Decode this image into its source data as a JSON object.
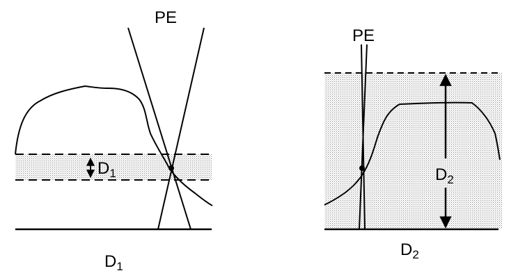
{
  "left_panel": {
    "pe_label": "PE",
    "band_label": "D",
    "band_label_sub": "1",
    "caption": "D",
    "caption_sub": "1"
  },
  "right_panel": {
    "pe_label": "PE",
    "band_label": "D",
    "band_label_sub": "2",
    "caption": "D",
    "caption_sub": "2"
  },
  "colors": {
    "ink": "#000000",
    "stipple": "#9a9a9a",
    "background": "#ffffff"
  }
}
